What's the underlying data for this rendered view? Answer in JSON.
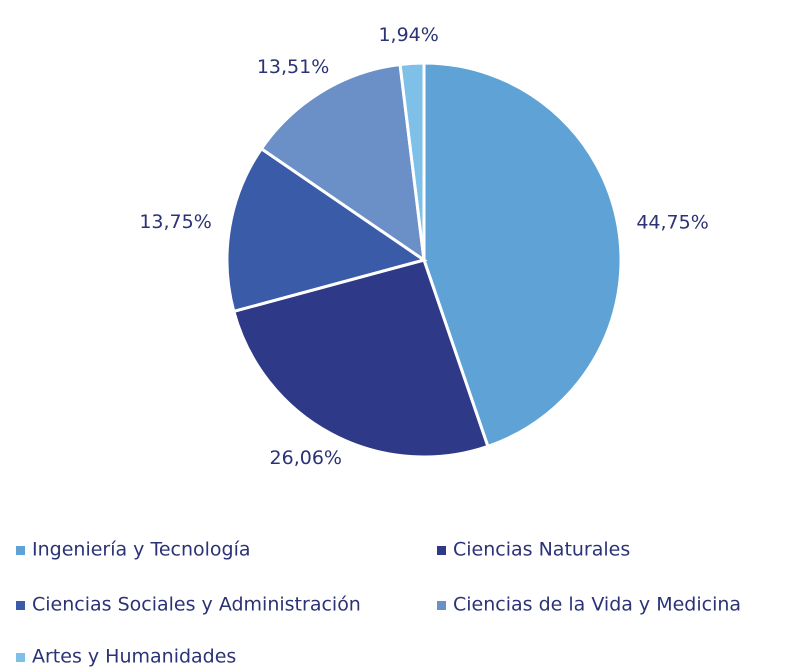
{
  "chart_data": {
    "type": "pie",
    "categories": [
      "Ingeniería y Tecnología",
      "Ciencias Naturales",
      "Ciencias Sociales y Administración",
      "Ciencias de la Vida y Medicina",
      "Artes y Humanidades"
    ],
    "values": [
      44.75,
      26.06,
      13.75,
      13.51,
      1.94
    ],
    "value_labels": [
      "44,75%",
      "26,06%",
      "13,75%",
      "13,51%",
      "1,94%"
    ],
    "colors": [
      "#5fa3d6",
      "#2e3a87",
      "#3a5ba8",
      "#6b8fc7",
      "#7fc0e8"
    ]
  }
}
